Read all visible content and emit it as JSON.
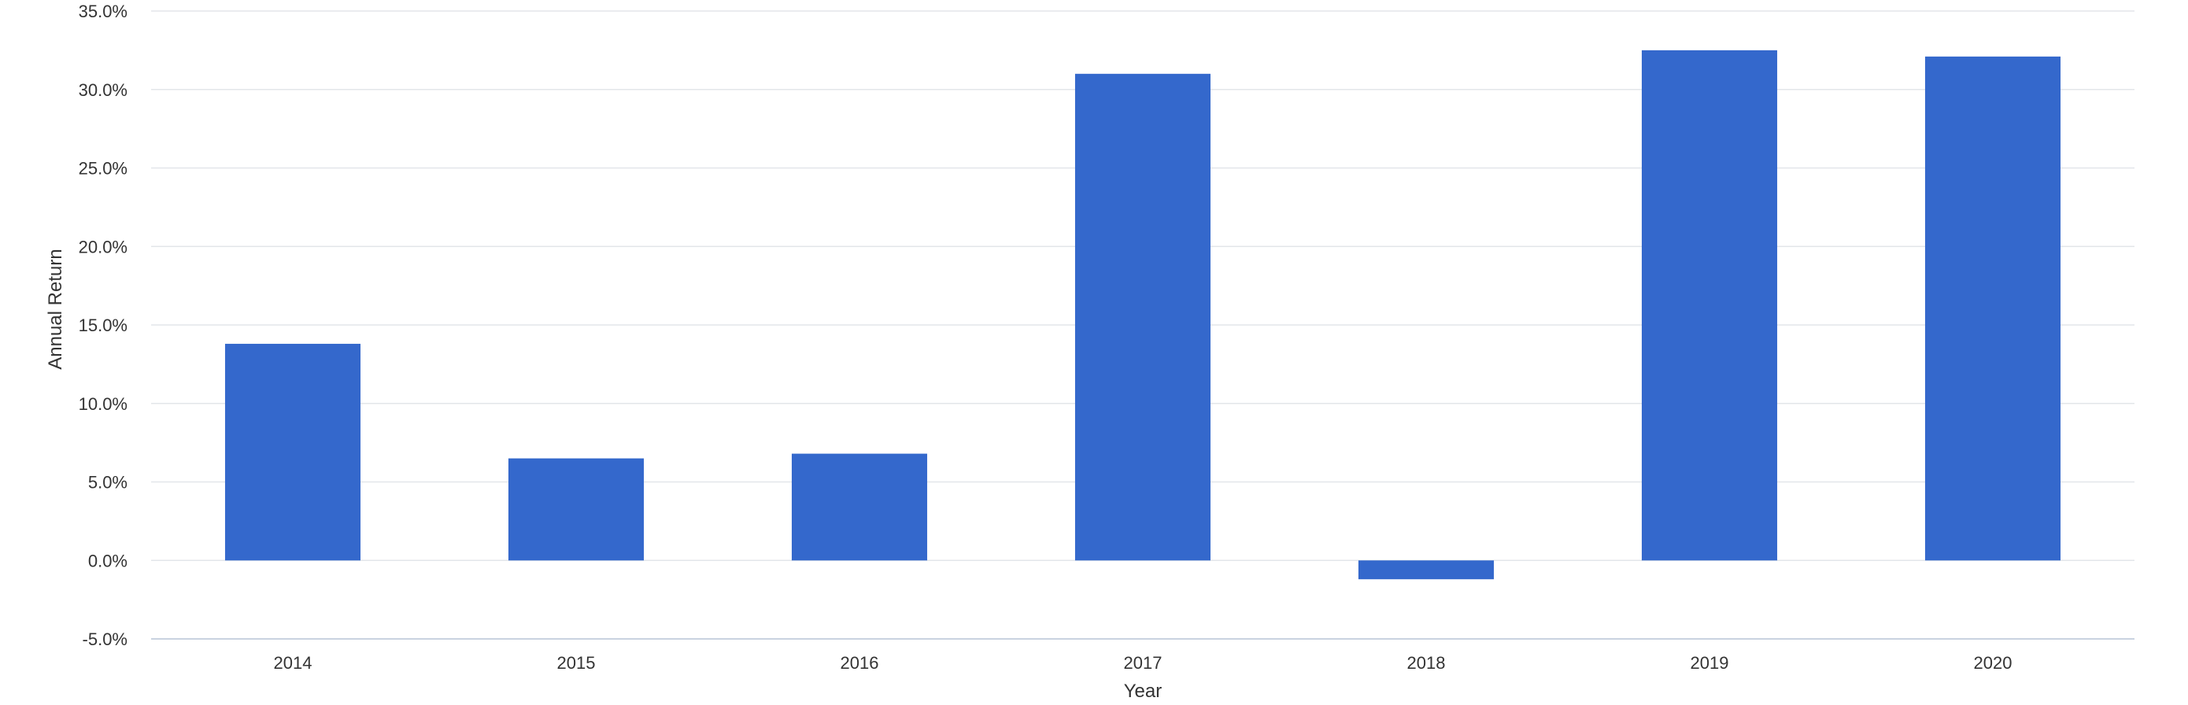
{
  "chart_data": {
    "type": "bar",
    "title": "",
    "xlabel": "Year",
    "ylabel": "Annual Return",
    "categories": [
      "2014",
      "2015",
      "2016",
      "2017",
      "2018",
      "2019",
      "2020"
    ],
    "series": [
      {
        "values": [
          13.8,
          6.5,
          6.8,
          31.0,
          -1.2,
          32.5,
          32.1
        ]
      }
    ],
    "ylim": [
      -5,
      35
    ],
    "yticks": [
      -5,
      0,
      5,
      10,
      15,
      20,
      25,
      30,
      35
    ],
    "ytick_labels": [
      "-5.0%",
      "0.0%",
      "5.0%",
      "10.0%",
      "15.0%",
      "20.0%",
      "25.0%",
      "30.0%",
      "35.0%"
    ],
    "grid": true,
    "legend": "none",
    "colors": {
      "bar": "#3468cc",
      "text": "#333333",
      "grid": "#e3e6ea",
      "axis": "#c9d3e0"
    }
  }
}
